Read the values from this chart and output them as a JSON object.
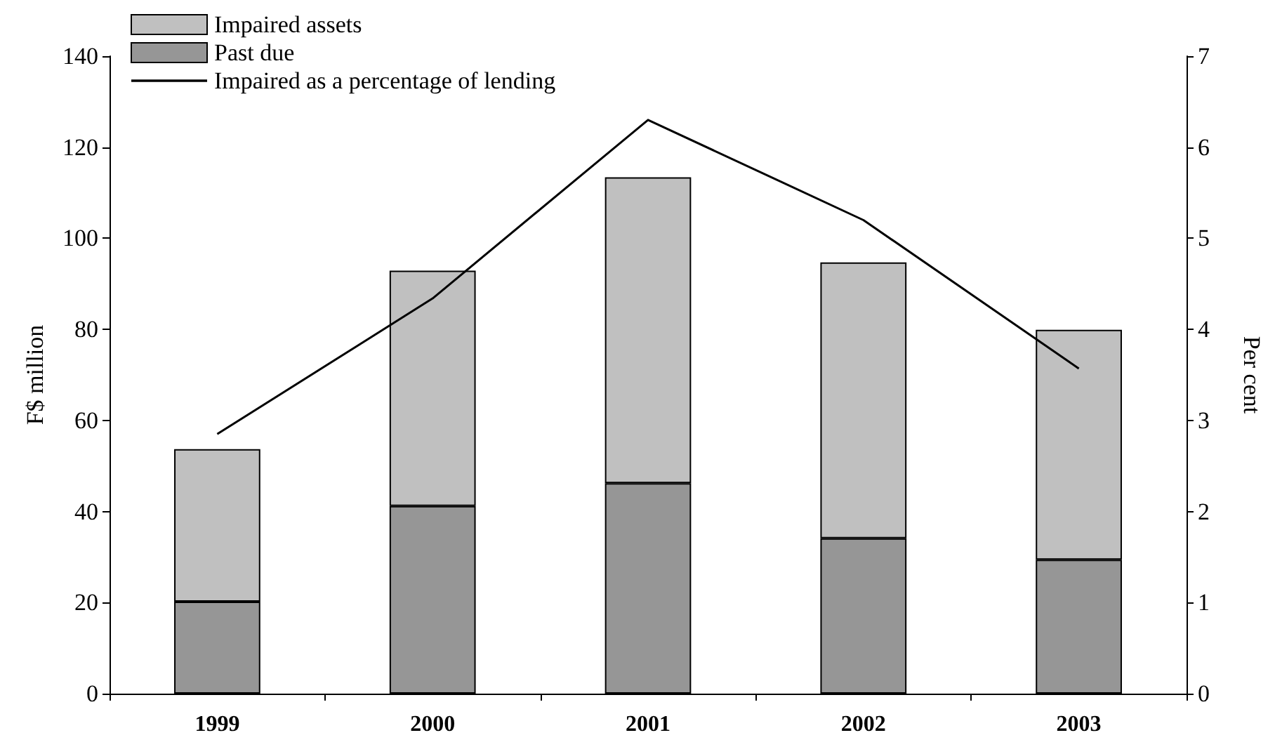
{
  "chart_data": {
    "type": "bar",
    "stacked": true,
    "categories": [
      "1999",
      "2000",
      "2001",
      "2002",
      "2003"
    ],
    "series": [
      {
        "name": "Past due",
        "color": "#969696",
        "values": [
          20.2,
          41.2,
          46.2,
          34.1,
          29.4
        ]
      },
      {
        "name": "Impaired assets",
        "color": "#c0c0c0",
        "values": [
          33.5,
          51.7,
          67.2,
          60.6,
          50.5
        ]
      },
      {
        "name": "Impaired as a percentage of lending",
        "type": "line",
        "axis": "y2",
        "color": "#000000",
        "marker": "none",
        "values": [
          2.85,
          4.34,
          6.3,
          5.2,
          3.57
        ]
      }
    ],
    "ylabel": "F$ million",
    "y2label": "Per cent",
    "ylim": [
      0,
      140
    ],
    "yticks": [
      0,
      20,
      40,
      60,
      80,
      100,
      120,
      140
    ],
    "y2lim": [
      0,
      7
    ],
    "y2ticks": [
      0,
      1,
      2,
      3,
      4,
      5,
      6,
      7
    ],
    "grid": false,
    "legend": "top left"
  }
}
